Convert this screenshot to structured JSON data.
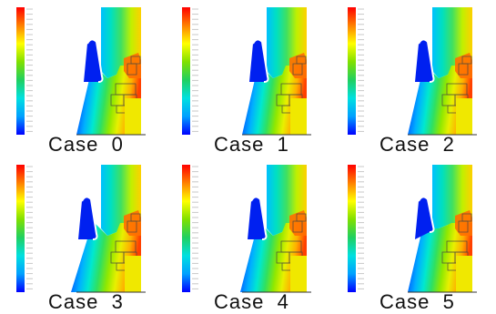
{
  "figure": {
    "panels": [
      {
        "case_label": "Case",
        "case_number": "0"
      },
      {
        "case_label": "Case",
        "case_number": "1"
      },
      {
        "case_label": "Case",
        "case_number": "2"
      },
      {
        "case_label": "Case",
        "case_number": "3"
      },
      {
        "case_label": "Case",
        "case_number": "4"
      },
      {
        "case_label": "Case",
        "case_number": "5"
      }
    ],
    "colormap": [
      "#0000ff",
      "#00a0ff",
      "#00e0e0",
      "#20d060",
      "#80e000",
      "#ffff00",
      "#ff8000",
      "#ff0000"
    ]
  }
}
